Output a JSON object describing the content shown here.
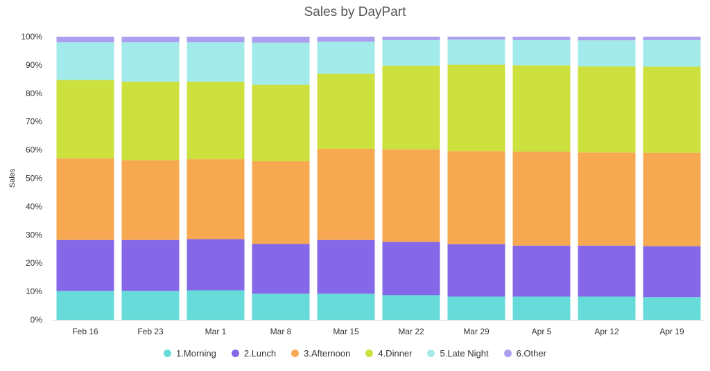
{
  "chart_data": {
    "type": "bar",
    "stacked": true,
    "percent_stacked": true,
    "title": "Sales by DayPart",
    "xlabel": "",
    "ylabel": "Sales",
    "ylim": [
      0,
      100
    ],
    "y_ticks": [
      "0%",
      "10%",
      "20%",
      "30%",
      "40%",
      "50%",
      "60%",
      "70%",
      "80%",
      "90%",
      "100%"
    ],
    "grid": false,
    "legend_position": "bottom",
    "categories": [
      "Feb 16",
      "Feb 23",
      "Mar 1",
      "Mar 8",
      "Mar 15",
      "Mar 22",
      "Mar 29",
      "Apr 5",
      "Apr 12",
      "Apr 19"
    ],
    "series": [
      {
        "name": "1.Morning",
        "color": "#66dbd9",
        "values": [
          10.2,
          10.2,
          10.4,
          9.2,
          9.2,
          8.7,
          8.2,
          8.2,
          8.2,
          8.0
        ]
      },
      {
        "name": "2.Lunch",
        "color": "#8468e8",
        "values": [
          18.0,
          18.0,
          18.1,
          17.6,
          19.0,
          18.8,
          18.5,
          18.0,
          18.0,
          18.0
        ]
      },
      {
        "name": "3.Afternoon",
        "color": "#f7a952",
        "values": [
          28.8,
          28.2,
          28.2,
          29.2,
          32.2,
          32.7,
          32.9,
          33.2,
          32.9,
          33.0
        ]
      },
      {
        "name": "4.Dinner",
        "color": "#cce03e",
        "values": [
          27.7,
          27.7,
          27.4,
          27.0,
          26.5,
          29.6,
          30.5,
          30.5,
          30.4,
          30.4
        ]
      },
      {
        "name": "5.Late Night",
        "color": "#a3ebea",
        "values": [
          13.3,
          13.9,
          13.9,
          14.9,
          11.3,
          9.0,
          8.9,
          8.9,
          9.2,
          9.4
        ]
      },
      {
        "name": "6.Other",
        "color": "#ad9ff0",
        "values": [
          2.0,
          2.0,
          2.0,
          2.1,
          1.8,
          1.2,
          1.0,
          1.2,
          1.3,
          1.2
        ]
      }
    ]
  }
}
